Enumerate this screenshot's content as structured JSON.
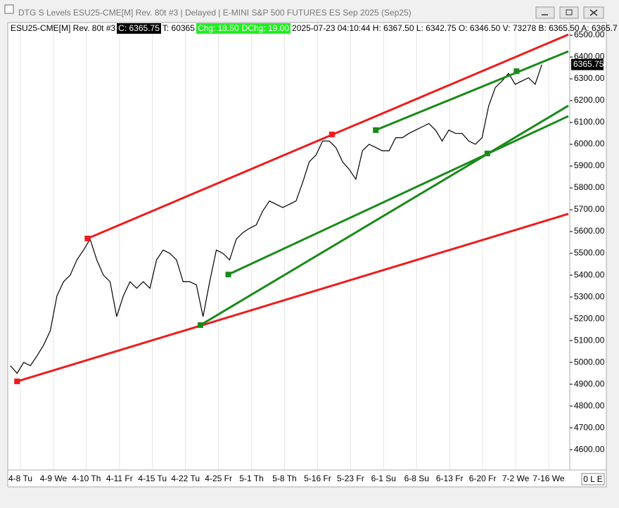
{
  "window": {
    "title": "DTG S Levels ESU25-CME[M]  Rev. 80t #3 | Delayed | E-MINI S&P 500 FUTURES ES Sep 2025 (Sep25)",
    "status": "0 L E"
  },
  "header": {
    "symbol": "ESU25-CME[M]  Rev. 80t #3",
    "close": "C: 6365.75",
    "ticks": "T: 60365",
    "change": "Chg: 18.50",
    "dchange": "DChg: 19.00",
    "quote": "2025-07-23 04:10:44  H: 6367.50  L: 6342.75  O: 6346.50  V: 73278  B: 6365.50  A: 6365.7"
  },
  "chart_data": {
    "type": "line",
    "color": "#000000",
    "grid": true,
    "xtick_labels": [
      "4-8 Tu",
      "4-9 We",
      "4-10 Th",
      "4-11 Fr",
      "4-15 Tu",
      "4-22 Tu",
      "4-25 Fr",
      "5-1 Th",
      "5-8 Th",
      "5-16 Fr",
      "5-23 Fr",
      "6-1 Su",
      "6-8 Su",
      "6-13 Fr",
      "6-20 Fr",
      "7-2 We",
      "7-16 We"
    ],
    "xlim": [
      -0.3,
      84
    ],
    "ylim": [
      4510,
      6555
    ],
    "yticks": [
      {
        "value": 4600,
        "label": "4600.00"
      },
      {
        "value": 4700,
        "label": "4700.00"
      },
      {
        "value": 4800,
        "label": "4800.00"
      },
      {
        "value": 4900,
        "label": "4900.00"
      },
      {
        "value": 5000,
        "label": "5000.00"
      },
      {
        "value": 5100,
        "label": "5100.00"
      },
      {
        "value": 5200,
        "label": "5200.00"
      },
      {
        "value": 5300,
        "label": "5300.00"
      },
      {
        "value": 5400,
        "label": "5400.00"
      },
      {
        "value": 5500,
        "label": "5500.00"
      },
      {
        "value": 5600,
        "label": "5600.00"
      },
      {
        "value": 5700,
        "label": "5700.00"
      },
      {
        "value": 5800,
        "label": "5800.00"
      },
      {
        "value": 5900,
        "label": "5900.00"
      },
      {
        "value": 6000,
        "label": "6000.00"
      },
      {
        "value": 6100,
        "label": "6100.00"
      },
      {
        "value": 6200,
        "label": "6200.00"
      },
      {
        "value": 6300,
        "label": "6300.00"
      },
      {
        "value": 6400,
        "label": "6400.00"
      },
      {
        "value": 6500,
        "label": "6500.00"
      }
    ],
    "last_price": 6365.75,
    "values": [
      4985,
      4950,
      5000,
      4985,
      5030,
      5080,
      5145,
      5305,
      5370,
      5400,
      5470,
      5515,
      5565,
      5470,
      5400,
      5370,
      5210,
      5305,
      5370,
      5340,
      5370,
      5340,
      5470,
      5515,
      5500,
      5470,
      5370,
      5370,
      5355,
      5210,
      5370,
      5515,
      5500,
      5470,
      5565,
      5595,
      5615,
      5630,
      5695,
      5740,
      5725,
      5710,
      5725,
      5740,
      5825,
      5920,
      5950,
      6015,
      6015,
      5985,
      5920,
      5885,
      5840,
      5970,
      6000,
      5985,
      5970,
      5970,
      6030,
      6030,
      6050,
      6065,
      6080,
      6095,
      6065,
      6015,
      6065,
      6050,
      6050,
      6015,
      6000,
      6030,
      6175,
      6260,
      6290,
      6325,
      6275,
      6290,
      6305,
      6275,
      6365
    ],
    "trendlines": [
      {
        "color": "#ee1c1c",
        "points": [
          [
            11.6,
            5568
          ],
          [
            84,
            6503
          ]
        ]
      },
      {
        "color": "#ee1c1c",
        "points": [
          [
            1,
            4913
          ],
          [
            84,
            5681
          ]
        ]
      },
      {
        "color": "#1a8a1a",
        "points": [
          [
            28.6,
            5171
          ],
          [
            84,
            6177
          ]
        ]
      },
      {
        "color": "#1a8a1a",
        "points": [
          [
            32.8,
            5403
          ],
          [
            84,
            6129
          ]
        ]
      },
      {
        "color": "#1a8a1a",
        "points": [
          [
            55,
            6065
          ],
          [
            84,
            6426
          ]
        ]
      }
    ],
    "pivots": [
      {
        "color": "#ee1c1c",
        "points": [
          [
            1,
            4913
          ],
          [
            11.6,
            5568
          ],
          [
            48.4,
            6045
          ]
        ]
      },
      {
        "color": "#1a8a1a",
        "points": [
          [
            28.6,
            5171
          ],
          [
            32.8,
            5403
          ],
          [
            55,
            6065
          ],
          [
            71.8,
            5958
          ],
          [
            76.2,
            6335
          ]
        ]
      }
    ]
  }
}
